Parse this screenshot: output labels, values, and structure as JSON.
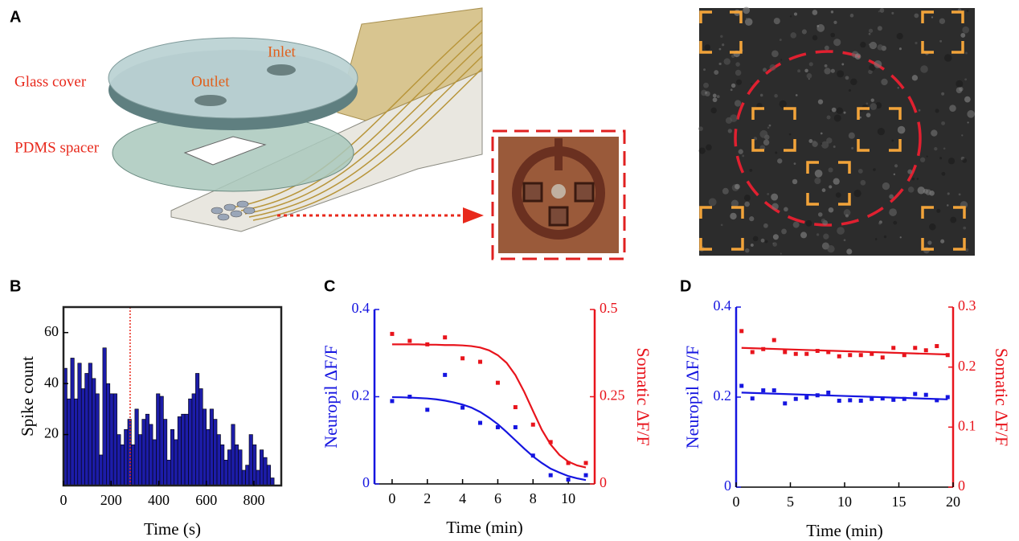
{
  "panel_labels": [
    "A",
    "B",
    "C",
    "D"
  ],
  "illustration": {
    "labels": {
      "glass_cover": "Glass cover",
      "pdms_spacer": "PDMS spacer",
      "outlet": "Outlet",
      "inlet": "Inlet"
    }
  },
  "chart_data": [
    {
      "type": "histogram",
      "xlabel": "Time (s)",
      "ylabel": "Spike count",
      "color": "#1c1ca8",
      "bins": [
        0,
        15,
        30,
        45,
        60,
        75,
        90,
        105,
        120,
        135,
        150,
        165,
        180,
        195,
        210,
        225,
        240,
        255,
        270,
        285,
        300,
        315,
        330,
        345,
        360,
        375,
        390,
        405,
        420,
        435,
        450,
        465,
        480,
        495,
        510,
        525,
        540,
        555,
        570,
        585,
        600,
        615,
        630,
        645,
        660,
        675,
        690,
        705,
        720,
        735,
        750,
        765,
        780,
        795,
        810,
        825,
        840,
        855,
        870,
        885
      ],
      "counts": [
        46,
        34,
        50,
        34,
        48,
        38,
        44,
        48,
        42,
        36,
        12,
        54,
        40,
        36,
        36,
        20,
        16,
        22,
        26,
        16,
        30,
        20,
        26,
        28,
        24,
        18,
        36,
        35,
        26,
        10,
        22,
        18,
        27,
        28,
        28,
        34,
        36,
        44,
        38,
        30,
        22,
        30,
        26,
        20,
        16,
        10,
        14,
        24,
        16,
        14,
        6,
        8,
        20,
        16,
        6,
        14,
        11,
        8,
        3
      ],
      "xlim": [
        0,
        915
      ],
      "ylim": [
        0,
        70
      ],
      "xticks": [
        0,
        200,
        400,
        600,
        800
      ],
      "yticks": [
        20,
        40,
        60
      ],
      "reference_line": {
        "x": 280,
        "color": "#e8291c"
      }
    },
    {
      "type": "scatter",
      "xlabel": "Time (min)",
      "ylabel": "Neuropil ΔF/F",
      "y2label": "Somatic ΔF/F",
      "xlim": [
        -1,
        11.5
      ],
      "xticks": [
        0,
        2,
        4,
        6,
        8,
        10
      ],
      "ylim": [
        0,
        0.4
      ],
      "yticks": [
        0,
        0.2,
        0.4
      ],
      "y2lim": [
        0,
        0.5
      ],
      "y2ticks": [
        0,
        0.25,
        0.5
      ],
      "series": [
        {
          "color": "#1515e0",
          "mode": "markers",
          "x": [
            0,
            1,
            2,
            3,
            4,
            5,
            6,
            7,
            8,
            9,
            10,
            11
          ],
          "values": [
            0.19,
            0.2,
            0.17,
            0.25,
            0.175,
            0.14,
            0.13,
            0.13,
            0.065,
            0.02,
            0.01,
            0.02
          ]
        },
        {
          "color": "#e8141c",
          "mode": "markers",
          "axis": "y2",
          "x": [
            0,
            1,
            2,
            3,
            4,
            5,
            6,
            7,
            8,
            9,
            10,
            11
          ],
          "values": [
            0.43,
            0.41,
            0.4,
            0.42,
            0.36,
            0.35,
            0.29,
            0.22,
            0.17,
            0.12,
            0.06,
            0.06
          ]
        },
        {
          "color": "#1515e0",
          "mode": "line",
          "x": [
            0,
            0.5,
            1,
            1.5,
            2,
            2.5,
            3,
            3.5,
            4,
            4.5,
            5,
            5.5,
            6,
            6.5,
            7,
            7.5,
            8,
            8.5,
            9,
            9.5,
            10,
            10.5,
            11
          ],
          "values": [
            0.199,
            0.1987,
            0.198,
            0.197,
            0.196,
            0.194,
            0.191,
            0.187,
            0.182,
            0.175,
            0.165,
            0.152,
            0.137,
            0.119,
            0.1,
            0.081,
            0.063,
            0.048,
            0.035,
            0.026,
            0.018,
            0.0127,
            0.0088
          ]
        },
        {
          "color": "#e8141c",
          "mode": "line",
          "axis": "y2",
          "x": [
            0,
            0.5,
            1,
            1.5,
            2,
            2.5,
            3,
            3.5,
            4,
            4.5,
            5,
            5.5,
            6,
            6.5,
            7,
            7.5,
            8,
            8.5,
            9,
            9.5,
            10,
            10.5,
            11
          ],
          "values": [
            0.4,
            0.4,
            0.4,
            0.4,
            0.399,
            0.399,
            0.398,
            0.398,
            0.397,
            0.395,
            0.391,
            0.383,
            0.369,
            0.347,
            0.312,
            0.264,
            0.209,
            0.155,
            0.113,
            0.083,
            0.064,
            0.053,
            0.047
          ]
        }
      ]
    },
    {
      "type": "scatter",
      "xlabel": "Time (min)",
      "ylabel": "Neuropil ΔF/F",
      "y2label": "Somatic ΔF/F",
      "xlim": [
        0,
        20
      ],
      "xticks": [
        0,
        5,
        10,
        15,
        20
      ],
      "ylim": [
        0,
        0.4
      ],
      "yticks": [
        0,
        0.2,
        0.4
      ],
      "y2lim": [
        0,
        0.3
      ],
      "y2ticks": [
        0,
        0.1,
        0.2,
        0.3
      ],
      "series": [
        {
          "color": "#1515e0",
          "mode": "markers",
          "x": [
            0.5,
            1.5,
            2.5,
            3.5,
            4.5,
            5.5,
            6.5,
            7.5,
            8.5,
            9.5,
            10.5,
            11.5,
            12.5,
            13.5,
            14.5,
            15.5,
            16.5,
            17.5,
            18.5,
            19.5
          ],
          "values": [
            0.225,
            0.197,
            0.215,
            0.215,
            0.186,
            0.196,
            0.199,
            0.204,
            0.21,
            0.192,
            0.193,
            0.192,
            0.196,
            0.197,
            0.194,
            0.196,
            0.207,
            0.205,
            0.193,
            0.2
          ]
        },
        {
          "color": "#e8141c",
          "mode": "markers",
          "axis": "y2",
          "x": [
            0.5,
            1.5,
            2.5,
            3.5,
            4.5,
            5.5,
            6.5,
            7.5,
            8.5,
            9.5,
            10.5,
            11.5,
            12.5,
            13.5,
            14.5,
            15.5,
            16.5,
            17.5,
            18.5,
            19.5
          ],
          "values": [
            0.26,
            0.225,
            0.23,
            0.245,
            0.225,
            0.222,
            0.222,
            0.227,
            0.225,
            0.218,
            0.22,
            0.22,
            0.222,
            0.216,
            0.232,
            0.22,
            0.232,
            0.228,
            0.235,
            0.22
          ]
        },
        {
          "color": "#1515e0",
          "mode": "line",
          "x": [
            0.5,
            19.5
          ],
          "values": [
            0.21,
            0.195
          ]
        },
        {
          "color": "#e8141c",
          "mode": "line",
          "axis": "y2",
          "x": [
            0.5,
            19.5
          ],
          "values": [
            0.232,
            0.221
          ]
        }
      ]
    }
  ]
}
